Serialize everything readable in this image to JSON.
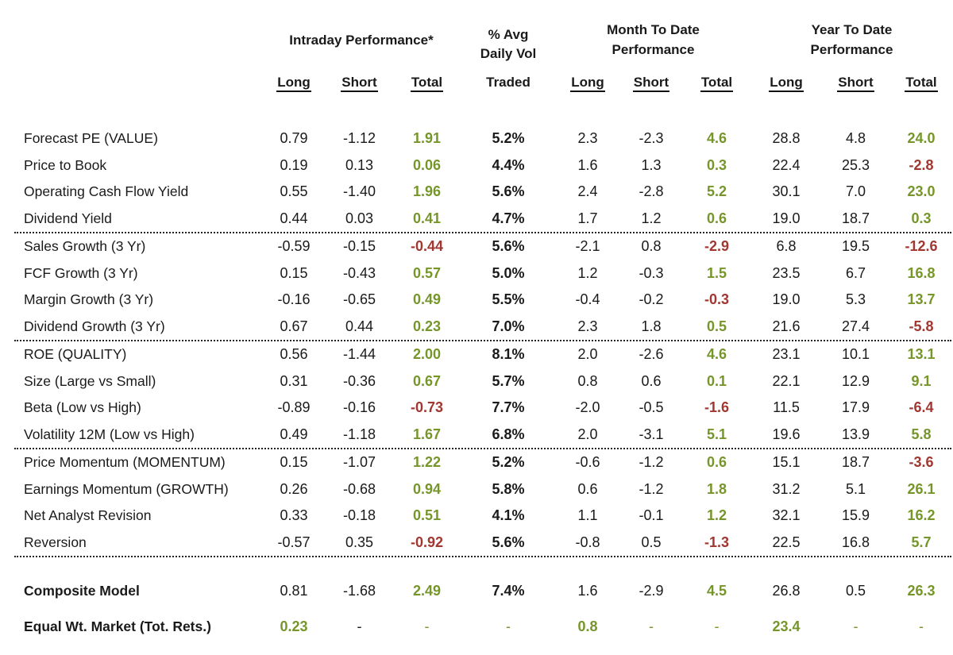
{
  "colors": {
    "green": "#76962A",
    "red": "#A13730",
    "text": "#1A1A1A"
  },
  "header": {
    "intraday": "Intraday Performance*",
    "vol_top": "% Avg\nDaily Vol",
    "vol_bottom": "Traded",
    "mtd": "Month To Date\nPerformance",
    "ytd": "Year To Date\nPerformance",
    "subcolumns": [
      "Long",
      "Short",
      "Total",
      "Long",
      "Short",
      "Total",
      "Long",
      "Short",
      "Total"
    ]
  },
  "rows": [
    {
      "label": "Forecast PE (VALUE)",
      "cells": [
        {
          "v": "0.79",
          "c": "k"
        },
        {
          "v": "-1.12",
          "c": "k"
        },
        {
          "v": "1.91",
          "c": "g",
          "b": true
        },
        {
          "v": "5.2%",
          "c": "k",
          "b": true
        },
        {
          "v": "2.3",
          "c": "k"
        },
        {
          "v": "-2.3",
          "c": "k"
        },
        {
          "v": "4.6",
          "c": "g",
          "b": true
        },
        {
          "v": "28.8",
          "c": "k"
        },
        {
          "v": "4.8",
          "c": "k"
        },
        {
          "v": "24.0",
          "c": "g",
          "b": true
        }
      ]
    },
    {
      "label": "Price to Book",
      "cells": [
        {
          "v": "0.19",
          "c": "k"
        },
        {
          "v": "0.13",
          "c": "k"
        },
        {
          "v": "0.06",
          "c": "g",
          "b": true
        },
        {
          "v": "4.4%",
          "c": "k",
          "b": true
        },
        {
          "v": "1.6",
          "c": "k"
        },
        {
          "v": "1.3",
          "c": "k"
        },
        {
          "v": "0.3",
          "c": "g",
          "b": true
        },
        {
          "v": "22.4",
          "c": "k"
        },
        {
          "v": "25.3",
          "c": "k"
        },
        {
          "v": "-2.8",
          "c": "r",
          "b": true
        }
      ]
    },
    {
      "label": "Operating Cash Flow Yield",
      "cells": [
        {
          "v": "0.55",
          "c": "k"
        },
        {
          "v": "-1.40",
          "c": "k"
        },
        {
          "v": "1.96",
          "c": "g",
          "b": true
        },
        {
          "v": "5.6%",
          "c": "k",
          "b": true
        },
        {
          "v": "2.4",
          "c": "k"
        },
        {
          "v": "-2.8",
          "c": "k"
        },
        {
          "v": "5.2",
          "c": "g",
          "b": true
        },
        {
          "v": "30.1",
          "c": "k"
        },
        {
          "v": "7.0",
          "c": "k"
        },
        {
          "v": "23.0",
          "c": "g",
          "b": true
        }
      ]
    },
    {
      "label": "Dividend Yield",
      "sep_after": true,
      "cells": [
        {
          "v": "0.44",
          "c": "k"
        },
        {
          "v": "0.03",
          "c": "k"
        },
        {
          "v": "0.41",
          "c": "g",
          "b": true
        },
        {
          "v": "4.7%",
          "c": "k",
          "b": true
        },
        {
          "v": "1.7",
          "c": "k"
        },
        {
          "v": "1.2",
          "c": "k"
        },
        {
          "v": "0.6",
          "c": "g",
          "b": true
        },
        {
          "v": "19.0",
          "c": "k"
        },
        {
          "v": "18.7",
          "c": "k"
        },
        {
          "v": "0.3",
          "c": "g",
          "b": true
        }
      ]
    },
    {
      "label": "Sales Growth (3 Yr)",
      "cells": [
        {
          "v": "-0.59",
          "c": "k"
        },
        {
          "v": "-0.15",
          "c": "k"
        },
        {
          "v": "-0.44",
          "c": "r",
          "b": true
        },
        {
          "v": "5.6%",
          "c": "k",
          "b": true
        },
        {
          "v": "-2.1",
          "c": "k"
        },
        {
          "v": "0.8",
          "c": "k"
        },
        {
          "v": "-2.9",
          "c": "r",
          "b": true
        },
        {
          "v": "6.8",
          "c": "k"
        },
        {
          "v": "19.5",
          "c": "k"
        },
        {
          "v": "-12.6",
          "c": "r",
          "b": true
        }
      ]
    },
    {
      "label": "FCF Growth (3 Yr)",
      "cells": [
        {
          "v": "0.15",
          "c": "k"
        },
        {
          "v": "-0.43",
          "c": "k"
        },
        {
          "v": "0.57",
          "c": "g",
          "b": true
        },
        {
          "v": "5.0%",
          "c": "k",
          "b": true
        },
        {
          "v": "1.2",
          "c": "k"
        },
        {
          "v": "-0.3",
          "c": "k"
        },
        {
          "v": "1.5",
          "c": "g",
          "b": true
        },
        {
          "v": "23.5",
          "c": "k"
        },
        {
          "v": "6.7",
          "c": "k"
        },
        {
          "v": "16.8",
          "c": "g",
          "b": true
        }
      ]
    },
    {
      "label": "Margin Growth (3 Yr)",
      "cells": [
        {
          "v": "-0.16",
          "c": "k"
        },
        {
          "v": "-0.65",
          "c": "k"
        },
        {
          "v": "0.49",
          "c": "g",
          "b": true
        },
        {
          "v": "5.5%",
          "c": "k",
          "b": true
        },
        {
          "v": "-0.4",
          "c": "k"
        },
        {
          "v": "-0.2",
          "c": "k"
        },
        {
          "v": "-0.3",
          "c": "r",
          "b": true
        },
        {
          "v": "19.0",
          "c": "k"
        },
        {
          "v": "5.3",
          "c": "k"
        },
        {
          "v": "13.7",
          "c": "g",
          "b": true
        }
      ]
    },
    {
      "label": "Dividend Growth (3 Yr)",
      "sep_after": true,
      "cells": [
        {
          "v": "0.67",
          "c": "k"
        },
        {
          "v": "0.44",
          "c": "k"
        },
        {
          "v": "0.23",
          "c": "g",
          "b": true
        },
        {
          "v": "7.0%",
          "c": "k",
          "b": true
        },
        {
          "v": "2.3",
          "c": "k"
        },
        {
          "v": "1.8",
          "c": "k"
        },
        {
          "v": "0.5",
          "c": "g",
          "b": true
        },
        {
          "v": "21.6",
          "c": "k"
        },
        {
          "v": "27.4",
          "c": "k"
        },
        {
          "v": "-5.8",
          "c": "r",
          "b": true
        }
      ]
    },
    {
      "label": "ROE (QUALITY)",
      "cells": [
        {
          "v": "0.56",
          "c": "k"
        },
        {
          "v": "-1.44",
          "c": "k"
        },
        {
          "v": "2.00",
          "c": "g",
          "b": true
        },
        {
          "v": "8.1%",
          "c": "k",
          "b": true
        },
        {
          "v": "2.0",
          "c": "k"
        },
        {
          "v": "-2.6",
          "c": "k"
        },
        {
          "v": "4.6",
          "c": "g",
          "b": true
        },
        {
          "v": "23.1",
          "c": "k"
        },
        {
          "v": "10.1",
          "c": "k"
        },
        {
          "v": "13.1",
          "c": "g",
          "b": true
        }
      ]
    },
    {
      "label": "Size (Large vs Small)",
      "cells": [
        {
          "v": "0.31",
          "c": "k"
        },
        {
          "v": "-0.36",
          "c": "k"
        },
        {
          "v": "0.67",
          "c": "g",
          "b": true
        },
        {
          "v": "5.7%",
          "c": "k",
          "b": true
        },
        {
          "v": "0.8",
          "c": "k"
        },
        {
          "v": "0.6",
          "c": "k"
        },
        {
          "v": "0.1",
          "c": "g",
          "b": true
        },
        {
          "v": "22.1",
          "c": "k"
        },
        {
          "v": "12.9",
          "c": "k"
        },
        {
          "v": "9.1",
          "c": "g",
          "b": true
        }
      ]
    },
    {
      "label": "Beta (Low vs High)",
      "cells": [
        {
          "v": "-0.89",
          "c": "k"
        },
        {
          "v": "-0.16",
          "c": "k"
        },
        {
          "v": "-0.73",
          "c": "r",
          "b": true
        },
        {
          "v": "7.7%",
          "c": "k",
          "b": true
        },
        {
          "v": "-2.0",
          "c": "k"
        },
        {
          "v": "-0.5",
          "c": "k"
        },
        {
          "v": "-1.6",
          "c": "r",
          "b": true
        },
        {
          "v": "11.5",
          "c": "k"
        },
        {
          "v": "17.9",
          "c": "k"
        },
        {
          "v": "-6.4",
          "c": "r",
          "b": true
        }
      ]
    },
    {
      "label": "Volatility 12M (Low vs High)",
      "sep_after": true,
      "cells": [
        {
          "v": "0.49",
          "c": "k"
        },
        {
          "v": "-1.18",
          "c": "k"
        },
        {
          "v": "1.67",
          "c": "g",
          "b": true
        },
        {
          "v": "6.8%",
          "c": "k",
          "b": true
        },
        {
          "v": "2.0",
          "c": "k"
        },
        {
          "v": "-3.1",
          "c": "k"
        },
        {
          "v": "5.1",
          "c": "g",
          "b": true
        },
        {
          "v": "19.6",
          "c": "k"
        },
        {
          "v": "13.9",
          "c": "k"
        },
        {
          "v": "5.8",
          "c": "g",
          "b": true
        }
      ]
    },
    {
      "label": "Price Momentum (MOMENTUM)",
      "cells": [
        {
          "v": "0.15",
          "c": "k"
        },
        {
          "v": "-1.07",
          "c": "k"
        },
        {
          "v": "1.22",
          "c": "g",
          "b": true
        },
        {
          "v": "5.2%",
          "c": "k",
          "b": true
        },
        {
          "v": "-0.6",
          "c": "k"
        },
        {
          "v": "-1.2",
          "c": "k"
        },
        {
          "v": "0.6",
          "c": "g",
          "b": true
        },
        {
          "v": "15.1",
          "c": "k"
        },
        {
          "v": "18.7",
          "c": "k"
        },
        {
          "v": "-3.6",
          "c": "r",
          "b": true
        }
      ]
    },
    {
      "label": "Earnings Momentum (GROWTH)",
      "cells": [
        {
          "v": "0.26",
          "c": "k"
        },
        {
          "v": "-0.68",
          "c": "k"
        },
        {
          "v": "0.94",
          "c": "g",
          "b": true
        },
        {
          "v": "5.8%",
          "c": "k",
          "b": true
        },
        {
          "v": "0.6",
          "c": "k"
        },
        {
          "v": "-1.2",
          "c": "k"
        },
        {
          "v": "1.8",
          "c": "g",
          "b": true
        },
        {
          "v": "31.2",
          "c": "k"
        },
        {
          "v": "5.1",
          "c": "k"
        },
        {
          "v": "26.1",
          "c": "g",
          "b": true
        }
      ]
    },
    {
      "label": "Net Analyst Revision",
      "cells": [
        {
          "v": "0.33",
          "c": "k"
        },
        {
          "v": "-0.18",
          "c": "k"
        },
        {
          "v": "0.51",
          "c": "g",
          "b": true
        },
        {
          "v": "4.1%",
          "c": "k",
          "b": true
        },
        {
          "v": "1.1",
          "c": "k"
        },
        {
          "v": "-0.1",
          "c": "k"
        },
        {
          "v": "1.2",
          "c": "g",
          "b": true
        },
        {
          "v": "32.1",
          "c": "k"
        },
        {
          "v": "15.9",
          "c": "k"
        },
        {
          "v": "16.2",
          "c": "g",
          "b": true
        }
      ]
    },
    {
      "label": "Reversion",
      "sep_after": true,
      "cells": [
        {
          "v": "-0.57",
          "c": "k"
        },
        {
          "v": "0.35",
          "c": "k"
        },
        {
          "v": "-0.92",
          "c": "r",
          "b": true
        },
        {
          "v": "5.6%",
          "c": "k",
          "b": true
        },
        {
          "v": "-0.8",
          "c": "k"
        },
        {
          "v": "0.5",
          "c": "k"
        },
        {
          "v": "-1.3",
          "c": "r",
          "b": true
        },
        {
          "v": "22.5",
          "c": "k"
        },
        {
          "v": "16.8",
          "c": "k"
        },
        {
          "v": "5.7",
          "c": "g",
          "b": true
        }
      ]
    },
    {
      "label": "Composite Model",
      "bold_label": true,
      "gap_before": 26,
      "cells": [
        {
          "v": "0.81",
          "c": "k"
        },
        {
          "v": "-1.68",
          "c": "k"
        },
        {
          "v": "2.49",
          "c": "g",
          "b": true
        },
        {
          "v": "7.4%",
          "c": "k",
          "b": true
        },
        {
          "v": "1.6",
          "c": "k"
        },
        {
          "v": "-2.9",
          "c": "k"
        },
        {
          "v": "4.5",
          "c": "g",
          "b": true
        },
        {
          "v": "26.8",
          "c": "k"
        },
        {
          "v": "0.5",
          "c": "k"
        },
        {
          "v": "26.3",
          "c": "g",
          "b": true
        }
      ]
    },
    {
      "label": "Equal Wt. Market (Tot. Rets.)",
      "bold_label": true,
      "gap_before": 11,
      "cells": [
        {
          "v": "0.23",
          "c": "g",
          "b": true
        },
        {
          "v": "-",
          "c": "k"
        },
        {
          "v": "-",
          "c": "g"
        },
        {
          "v": "-",
          "c": "g"
        },
        {
          "v": "0.8",
          "c": "g",
          "b": true
        },
        {
          "v": "-",
          "c": "g"
        },
        {
          "v": "-",
          "c": "g"
        },
        {
          "v": "23.4",
          "c": "g",
          "b": true
        },
        {
          "v": "-",
          "c": "g"
        },
        {
          "v": "-",
          "c": "g"
        }
      ]
    }
  ]
}
